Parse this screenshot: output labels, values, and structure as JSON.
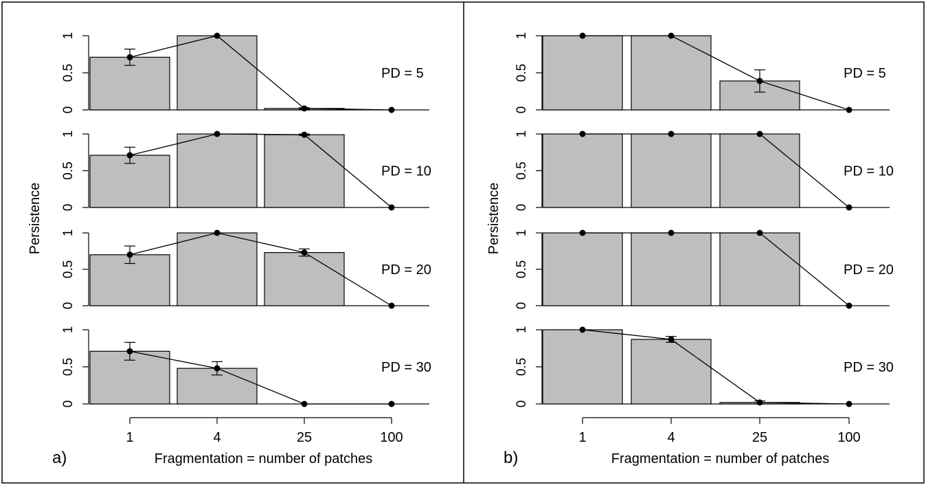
{
  "chart_data": [
    {
      "type": "bar",
      "panel_label": "a)",
      "xlabel": "Fragmentation = number of patches",
      "ylabel": "Persistence",
      "categories": [
        "1",
        "4",
        "25",
        "100"
      ],
      "ylim": [
        0,
        1
      ],
      "yticks": [
        "0",
        "0.5",
        "1"
      ],
      "grid": false,
      "series": [
        {
          "label": "PD = 5",
          "values": [
            0.71,
            1.0,
            0.02,
            0.0
          ],
          "err": [
            0.11,
            0.0,
            0.01,
            0.0
          ]
        },
        {
          "label": "PD = 10",
          "values": [
            0.71,
            1.0,
            0.99,
            0.0
          ],
          "err": [
            0.11,
            0.0,
            0.01,
            0.0
          ]
        },
        {
          "label": "PD = 20",
          "values": [
            0.7,
            1.0,
            0.73,
            0.0
          ],
          "err": [
            0.12,
            0.0,
            0.05,
            0.0
          ]
        },
        {
          "label": "PD = 30",
          "values": [
            0.71,
            0.48,
            0.0,
            0.0
          ],
          "err": [
            0.12,
            0.09,
            0.0,
            0.0
          ]
        }
      ]
    },
    {
      "type": "bar",
      "panel_label": "b)",
      "xlabel": "Fragmentation = number of patches",
      "ylabel": "Persistence",
      "categories": [
        "1",
        "4",
        "25",
        "100"
      ],
      "ylim": [
        0,
        1
      ],
      "yticks": [
        "0",
        "0.5",
        "1"
      ],
      "grid": false,
      "series": [
        {
          "label": "PD = 5",
          "values": [
            1.0,
            1.0,
            0.39,
            0.0
          ],
          "err": [
            0.0,
            0.0,
            0.15,
            0.0
          ]
        },
        {
          "label": "PD = 10",
          "values": [
            1.0,
            1.0,
            1.0,
            0.0
          ],
          "err": [
            0.0,
            0.0,
            0.0,
            0.0
          ]
        },
        {
          "label": "PD = 20",
          "values": [
            1.0,
            1.0,
            1.0,
            0.0
          ],
          "err": [
            0.0,
            0.0,
            0.0,
            0.0
          ]
        },
        {
          "label": "PD = 30",
          "values": [
            1.0,
            0.87,
            0.02,
            0.0
          ],
          "err": [
            0.0,
            0.04,
            0.02,
            0.0
          ]
        }
      ]
    }
  ],
  "colors": {
    "bar_fill": "#bebebe",
    "bar_stroke": "#000000",
    "line": "#000000"
  }
}
